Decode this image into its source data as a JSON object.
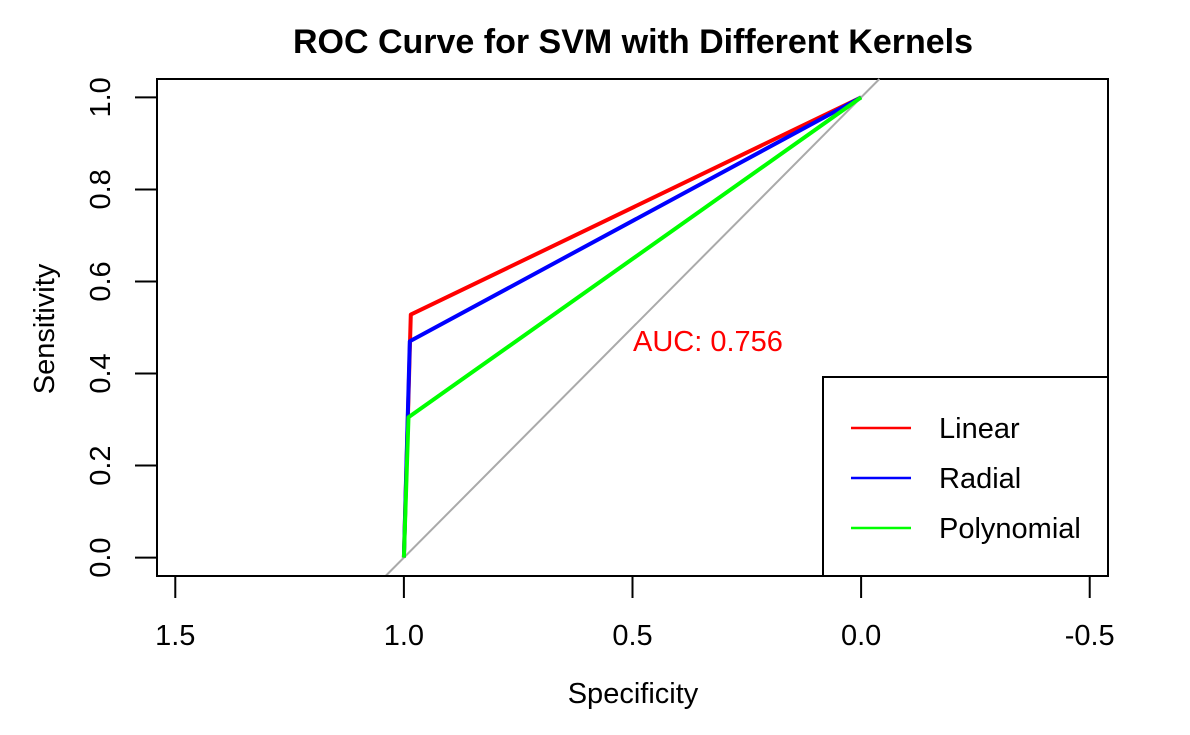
{
  "chart_data": {
    "type": "line",
    "title": "ROC Curve for SVM with Different Kernels",
    "xlabel": "Specificity",
    "ylabel": "Sensitivity",
    "xlim": [
      1.54,
      -0.54
    ],
    "ylim": [
      -0.04,
      1.04
    ],
    "x_reversed": true,
    "x_ticks": [
      1.5,
      1.0,
      0.5,
      0.0,
      -0.5
    ],
    "x_tick_labels": [
      "1.5",
      "1.0",
      "0.5",
      "0.0",
      "-0.5"
    ],
    "y_ticks": [
      0.0,
      0.2,
      0.4,
      0.6,
      0.8,
      1.0
    ],
    "y_tick_labels": [
      "0.0",
      "0.2",
      "0.4",
      "0.6",
      "0.8",
      "1.0"
    ],
    "grid": false,
    "legend_position": "bottom-right",
    "diagonal": {
      "x": [
        1.04,
        -0.04
      ],
      "y": [
        -0.04,
        1.04
      ],
      "color": "#aaaaaa"
    },
    "series": [
      {
        "name": "Linear",
        "color": "#ff0000",
        "x": [
          1.0,
          0.985,
          0.0
        ],
        "y": [
          0.0,
          0.528,
          1.0
        ]
      },
      {
        "name": "Radial",
        "color": "#0000ff",
        "x": [
          1.0,
          0.987,
          0.0
        ],
        "y": [
          0.0,
          0.47,
          1.0
        ]
      },
      {
        "name": "Polynomial",
        "color": "#00ff00",
        "x": [
          1.0,
          0.99,
          0.0
        ],
        "y": [
          0.0,
          0.305,
          1.0
        ]
      }
    ],
    "annotations": [
      {
        "text": "AUC: 0.756",
        "x": 0.5,
        "y": 0.47,
        "color": "#ff0000"
      }
    ]
  }
}
